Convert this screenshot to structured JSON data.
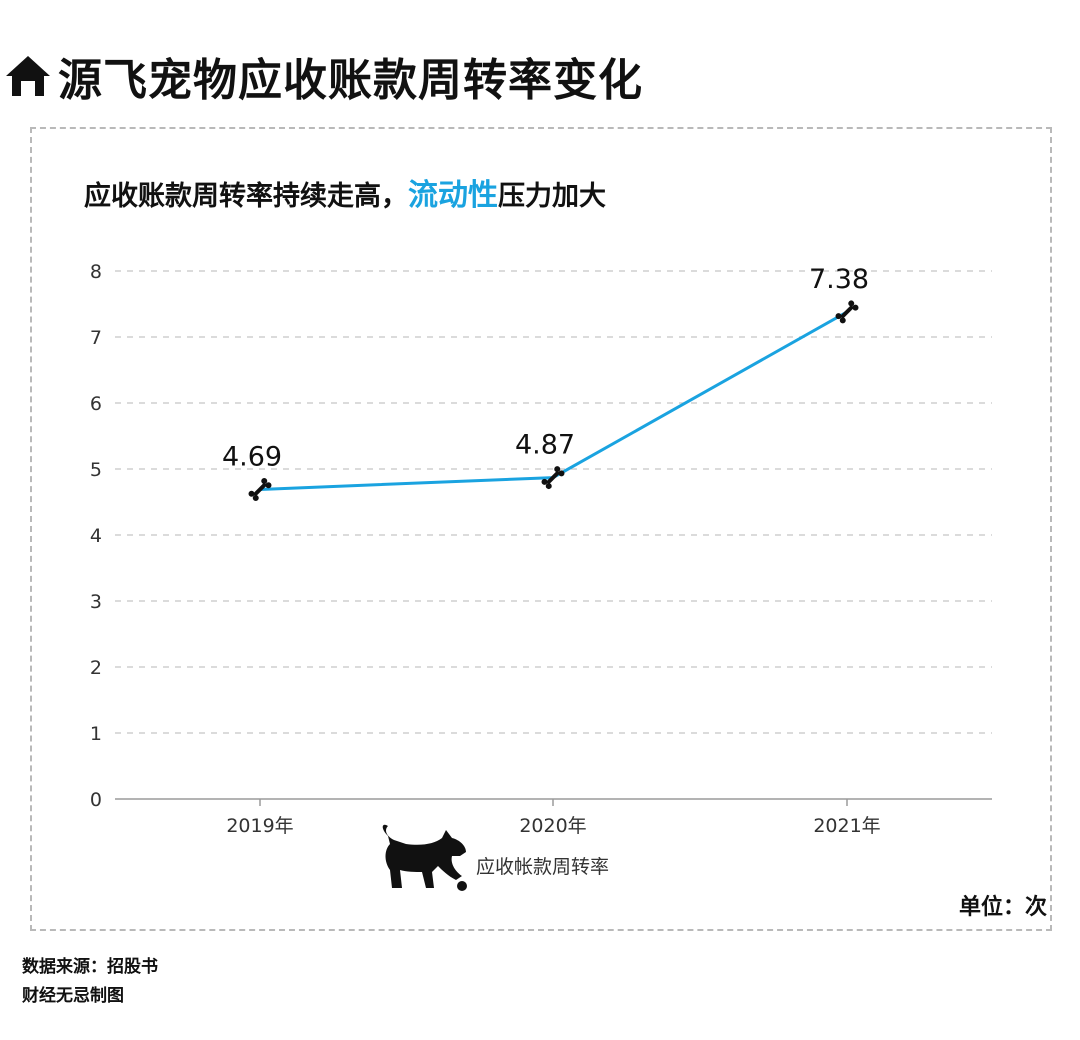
{
  "page_title": "源飞宠物应收账款周转率变化",
  "subtitle": {
    "prefix": "应收账款周转率持续走高，",
    "highlight": "流动性",
    "suffix": "压力加大"
  },
  "colors": {
    "line": "#1aa3e0",
    "highlight": "#1aa3e0",
    "grid": "#cfcfcf",
    "axis": "#9a9a9a",
    "marker": "#111111"
  },
  "icons": {
    "title_icon": "house-icon",
    "legend_icon": "dog-icon",
    "marker_icon": "bone-icon"
  },
  "chart_data": {
    "type": "line",
    "categories": [
      "2019年",
      "2020年",
      "2021年"
    ],
    "series": [
      {
        "name": "应收帐款周转率",
        "values": [
          4.69,
          4.87,
          7.38
        ]
      }
    ],
    "data_labels": [
      "4.69",
      "4.87",
      "7.38"
    ],
    "ylim": [
      0,
      8
    ],
    "yticks": [
      0,
      1,
      2,
      3,
      4,
      5,
      6,
      7,
      8
    ],
    "grid": true,
    "legend_position": "bottom"
  },
  "unit_label": "单位：次",
  "footer": {
    "source": "数据来源：招股书",
    "credit": "财经无忌制图"
  }
}
